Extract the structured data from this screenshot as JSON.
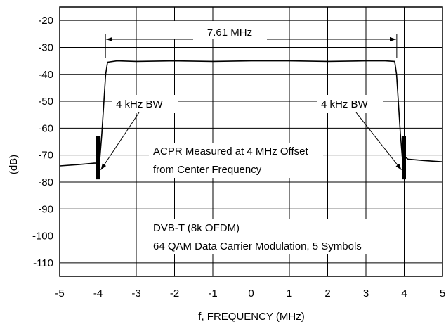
{
  "chart_data": {
    "type": "line",
    "title": "",
    "xlabel": "f, FREQUENCY (MHz)",
    "ylabel": "(dB)",
    "xlim": [
      -5,
      5
    ],
    "ylim": [
      -115,
      -15
    ],
    "x_ticks": [
      -5,
      -4,
      -3,
      -2,
      -1,
      0,
      1,
      2,
      3,
      4,
      5
    ],
    "y_ticks": [
      -20,
      -30,
      -40,
      -50,
      -60,
      -70,
      -80,
      -90,
      -100,
      -110
    ],
    "x_tick_labels": [
      "-5",
      "-4",
      "-3",
      "-2",
      "-1",
      "0",
      "1",
      "2",
      "3",
      "4",
      "5"
    ],
    "y_tick_labels": [
      "-20",
      "-30",
      "-40",
      "-50",
      "-60",
      "-70",
      "-80",
      "-90",
      "-100",
      "-110"
    ],
    "grid": true,
    "series": [
      {
        "color": "#000000",
        "x": [
          -5.0,
          -4.5,
          -4.1,
          -4.05,
          -3.95,
          -3.9,
          -3.8,
          -3.75,
          -3.5,
          -3.0,
          -2.0,
          -1.0,
          0.0,
          1.0,
          2.0,
          3.0,
          3.5,
          3.75,
          3.8,
          3.9,
          3.95,
          4.05,
          4.1,
          4.5,
          5.0
        ],
        "y": [
          -74,
          -73.5,
          -73,
          -73,
          -71,
          -62,
          -40,
          -35.5,
          -35,
          -35.2,
          -35,
          -35.2,
          -35,
          -35,
          -35.2,
          -35,
          -35,
          -35.2,
          -40,
          -62,
          -71,
          -71,
          -71.5,
          -72,
          -72.5
        ]
      }
    ],
    "markers": [
      {
        "x": -4.0,
        "y_top": -63,
        "y_bottom": -79
      },
      {
        "x": 4.0,
        "y_top": -63,
        "y_bottom": -79
      }
    ],
    "annotations": {
      "bandwidth": {
        "text": "7.61 MHz",
        "x_start": -3.805,
        "x_end": 3.805,
        "y": -27
      },
      "rbw_left": {
        "text": "4 kHz BW",
        "arrow_from": [
          -3.3,
          -50
        ],
        "arrow_to": [
          -4.0,
          -75.5
        ]
      },
      "rbw_right": {
        "text": "4 kHz BW",
        "arrow_from": [
          3.3,
          -50
        ],
        "arrow_to": [
          4.0,
          -75.5
        ]
      },
      "acpr_line1": "ACPR Measured at 4 MHz Offset",
      "acpr_line2": "from Center Frequency",
      "signal_line1": "DVB-T (8k OFDM)",
      "signal_line2": "64 QAM Data Carrier Modulation, 5 Symbols"
    }
  }
}
